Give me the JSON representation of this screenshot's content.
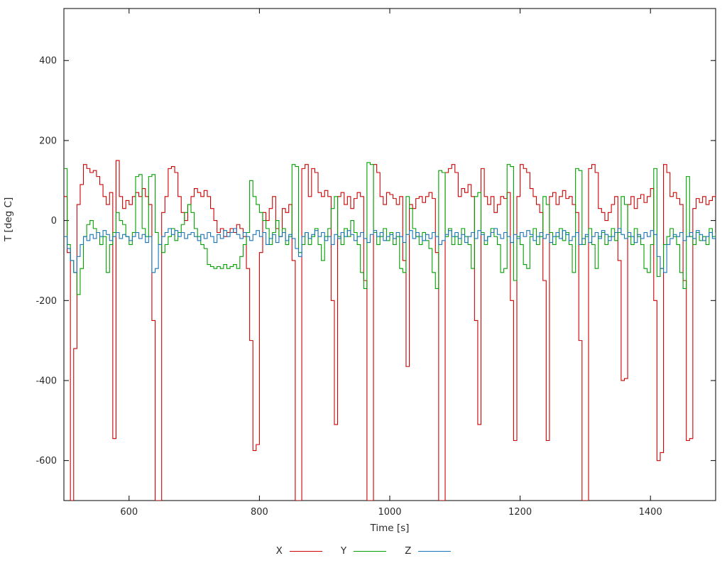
{
  "chart_data": {
    "type": "line",
    "style": "steps",
    "title": "",
    "xlabel": "Time [s]",
    "ylabel": "T [deg C]",
    "xlim": [
      500,
      1500
    ],
    "ylim": [
      -700,
      530
    ],
    "xticks": [
      600,
      800,
      1000,
      1200,
      1400
    ],
    "yticks": [
      -600,
      -400,
      -200,
      0,
      200,
      400
    ],
    "grid": false,
    "legend_position": "bottom-center",
    "background_color": "#ffffff",
    "border_color": "#000000",
    "x": {
      "start": 500,
      "step": 5
    },
    "series": [
      {
        "name": "X",
        "color": "#cc0000",
        "values": [
          60,
          -80,
          -700,
          -320,
          40,
          90,
          140,
          130,
          120,
          125,
          110,
          90,
          60,
          40,
          70,
          -545,
          150,
          60,
          30,
          50,
          40,
          60,
          70,
          60,
          80,
          60,
          40,
          -250,
          -700,
          -700,
          20,
          60,
          130,
          135,
          120,
          60,
          20,
          0,
          40,
          60,
          80,
          70,
          60,
          75,
          60,
          30,
          0,
          -30,
          -20,
          -40,
          -30,
          -20,
          -30,
          -10,
          -20,
          -40,
          -120,
          -300,
          -575,
          -560,
          -80,
          20,
          0,
          30,
          60,
          -20,
          -40,
          30,
          20,
          40,
          -100,
          -700,
          -700,
          130,
          140,
          60,
          130,
          120,
          70,
          60,
          75,
          60,
          -200,
          -510,
          60,
          70,
          40,
          60,
          30,
          55,
          70,
          60,
          -150,
          -700,
          -700,
          140,
          120,
          60,
          40,
          70,
          65,
          55,
          40,
          60,
          -100,
          -365,
          40,
          30,
          55,
          60,
          45,
          60,
          70,
          55,
          -80,
          -700,
          -700,
          120,
          130,
          140,
          120,
          60,
          80,
          70,
          90,
          60,
          -250,
          -510,
          130,
          60,
          40,
          60,
          20,
          40,
          60,
          55,
          70,
          -200,
          -550,
          60,
          140,
          130,
          120,
          80,
          60,
          40,
          20,
          -150,
          -550,
          60,
          70,
          40,
          60,
          75,
          55,
          60,
          40,
          20,
          -300,
          -700,
          -700,
          130,
          140,
          120,
          30,
          20,
          0,
          20,
          40,
          60,
          -100,
          -400,
          -395,
          40,
          60,
          30,
          55,
          65,
          45,
          60,
          80,
          -200,
          -600,
          -580,
          140,
          120,
          60,
          70,
          55,
          40,
          -150,
          -550,
          -545,
          30,
          55,
          45,
          60,
          40,
          50,
          60,
          65
        ]
      },
      {
        "name": "Y",
        "color": "#00a000",
        "values": [
          130,
          -60,
          -100,
          -130,
          -185,
          -120,
          -40,
          -10,
          0,
          -20,
          -30,
          -60,
          -40,
          -130,
          -60,
          -30,
          20,
          0,
          -10,
          -40,
          -60,
          -30,
          110,
          115,
          -20,
          -40,
          110,
          115,
          -30,
          -60,
          -80,
          -60,
          -40,
          -20,
          -50,
          -30,
          -10,
          20,
          40,
          20,
          -20,
          -40,
          -60,
          -70,
          -110,
          -115,
          -120,
          -115,
          -120,
          -110,
          -120,
          -115,
          -110,
          -120,
          -90,
          -60,
          -30,
          100,
          60,
          40,
          20,
          0,
          -20,
          -60,
          -30,
          0,
          -40,
          -20,
          -60,
          -40,
          140,
          135,
          -80,
          -60,
          -30,
          -60,
          -40,
          -20,
          -60,
          -100,
          -40,
          -20,
          30,
          60,
          -40,
          -60,
          -20,
          -40,
          0,
          -30,
          -60,
          -130,
          -170,
          145,
          140,
          -30,
          -60,
          -40,
          -20,
          -50,
          -30,
          -60,
          -40,
          -120,
          -130,
          60,
          30,
          -20,
          -40,
          -60,
          -30,
          -50,
          -70,
          -130,
          -170,
          125,
          120,
          -40,
          -20,
          -60,
          -40,
          -60,
          -20,
          -40,
          -60,
          -120,
          60,
          70,
          -30,
          -60,
          -40,
          -20,
          -40,
          -60,
          -130,
          -120,
          140,
          135,
          -150,
          -40,
          -60,
          -110,
          -120,
          -40,
          -20,
          -60,
          -40,
          60,
          40,
          -30,
          -60,
          -40,
          -20,
          -50,
          -30,
          -60,
          -130,
          130,
          125,
          -60,
          -40,
          -20,
          -60,
          -120,
          -40,
          -30,
          -60,
          -40,
          -20,
          -50,
          -30,
          60,
          40,
          -40,
          -60,
          -20,
          -40,
          -60,
          -120,
          -130,
          -60,
          130,
          -140,
          -120,
          -60,
          -40,
          -20,
          -40,
          -60,
          -130,
          -170,
          110,
          -40,
          -60,
          -30,
          -50,
          -40,
          -60,
          -20,
          -40,
          -30
        ]
      },
      {
        "name": "Z",
        "color": "#1874b8",
        "values": [
          -40,
          -70,
          -100,
          -130,
          -90,
          -60,
          -40,
          -50,
          -35,
          -45,
          -30,
          -40,
          -25,
          -35,
          -50,
          -40,
          -30,
          -45,
          -35,
          -40,
          -50,
          -40,
          -30,
          -45,
          -35,
          -55,
          -40,
          -130,
          -120,
          -60,
          -40,
          -30,
          -20,
          -35,
          -25,
          -40,
          -30,
          -45,
          -35,
          -30,
          -40,
          -50,
          -35,
          -45,
          -30,
          -40,
          -55,
          -35,
          -45,
          -25,
          -40,
          -30,
          -20,
          -35,
          -45,
          -30,
          -40,
          -50,
          -35,
          -25,
          -40,
          -30,
          -60,
          -45,
          -35,
          -55,
          -40,
          -30,
          -50,
          -35,
          -45,
          -70,
          -90,
          -40,
          -30,
          -45,
          -35,
          -25,
          -40,
          -30,
          -50,
          -40,
          -60,
          -35,
          -45,
          -30,
          -40,
          -25,
          -35,
          -50,
          -40,
          -30,
          -45,
          -55,
          -35,
          -25,
          -40,
          -30,
          -50,
          -40,
          -35,
          -45,
          -30,
          -40,
          -55,
          -35,
          -25,
          -45,
          -30,
          -40,
          -50,
          -35,
          -45,
          -30,
          -40,
          -60,
          -50,
          -35,
          -25,
          -40,
          -30,
          -45,
          -35,
          -55,
          -40,
          -30,
          -45,
          -25,
          -35,
          -50,
          -40,
          -30,
          -20,
          -35,
          -45,
          -30,
          -40,
          -55,
          -35,
          -45,
          -30,
          -40,
          -25,
          -35,
          -50,
          -40,
          -30,
          -45,
          -35,
          -55,
          -40,
          -30,
          -45,
          -25,
          -35,
          -50,
          -40,
          -30,
          -60,
          -45,
          -35,
          -55,
          -40,
          -30,
          -45,
          -25,
          -35,
          -50,
          -40,
          -30,
          -20,
          -35,
          -45,
          -30,
          -40,
          -55,
          -35,
          -45,
          -30,
          -40,
          -25,
          -35,
          -90,
          -120,
          -130,
          -60,
          -45,
          -35,
          -40,
          -30,
          -50,
          -40,
          -30,
          -45,
          -25,
          -35,
          -50,
          -40,
          -30,
          -45,
          -35
        ]
      }
    ]
  }
}
